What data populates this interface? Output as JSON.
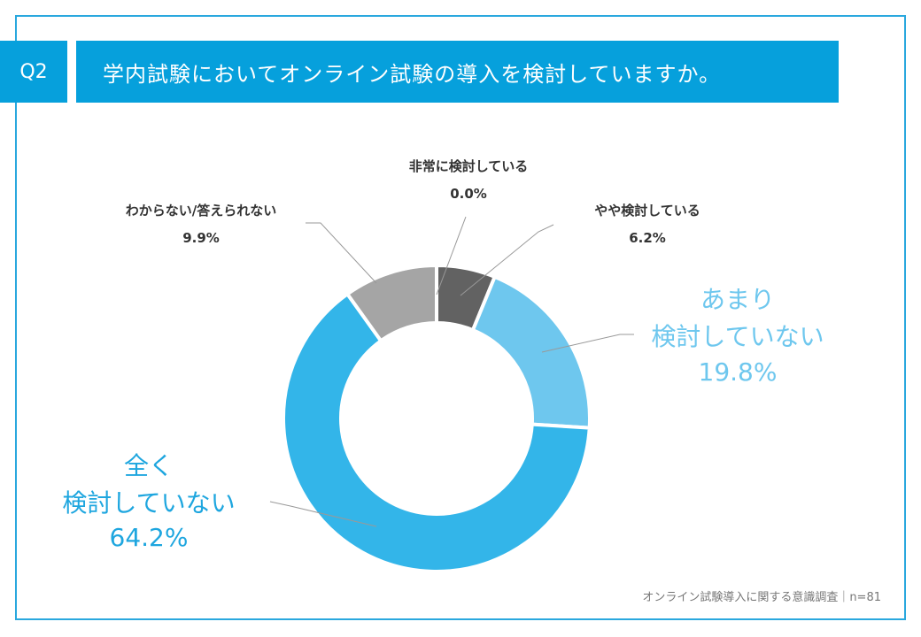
{
  "header": {
    "badge": "Q2",
    "title": "学内試験においてオンライン試験の導入を検討していますか。"
  },
  "footer": {
    "source": "オンライン試験導入に関する意識調査｜n=81"
  },
  "chart_data": {
    "type": "pie",
    "donut": true,
    "categories": [
      "非常に検討している",
      "やや検討している",
      "あまり検討していない",
      "全く検討していない",
      "わからない/答えられない"
    ],
    "values": [
      0.0,
      6.2,
      19.8,
      64.2,
      9.9
    ],
    "value_labels": [
      "0.0%",
      "6.2%",
      "19.8%",
      "64.2%",
      "9.9%"
    ],
    "label_lines": {
      "very": [
        "非常に検討している"
      ],
      "somewhat": [
        "やや検討している"
      ],
      "notmuch": [
        "あまり",
        "検討していない"
      ],
      "notatall": [
        "全く",
        "検討していない"
      ],
      "unknown": [
        "わからない/答えられない"
      ]
    },
    "colors": [
      "#3f3f3f",
      "#626262",
      "#6ec7ee",
      "#33b5e9",
      "#a5a5a5"
    ],
    "start": "12 o'clock",
    "direction": "clockwise"
  }
}
